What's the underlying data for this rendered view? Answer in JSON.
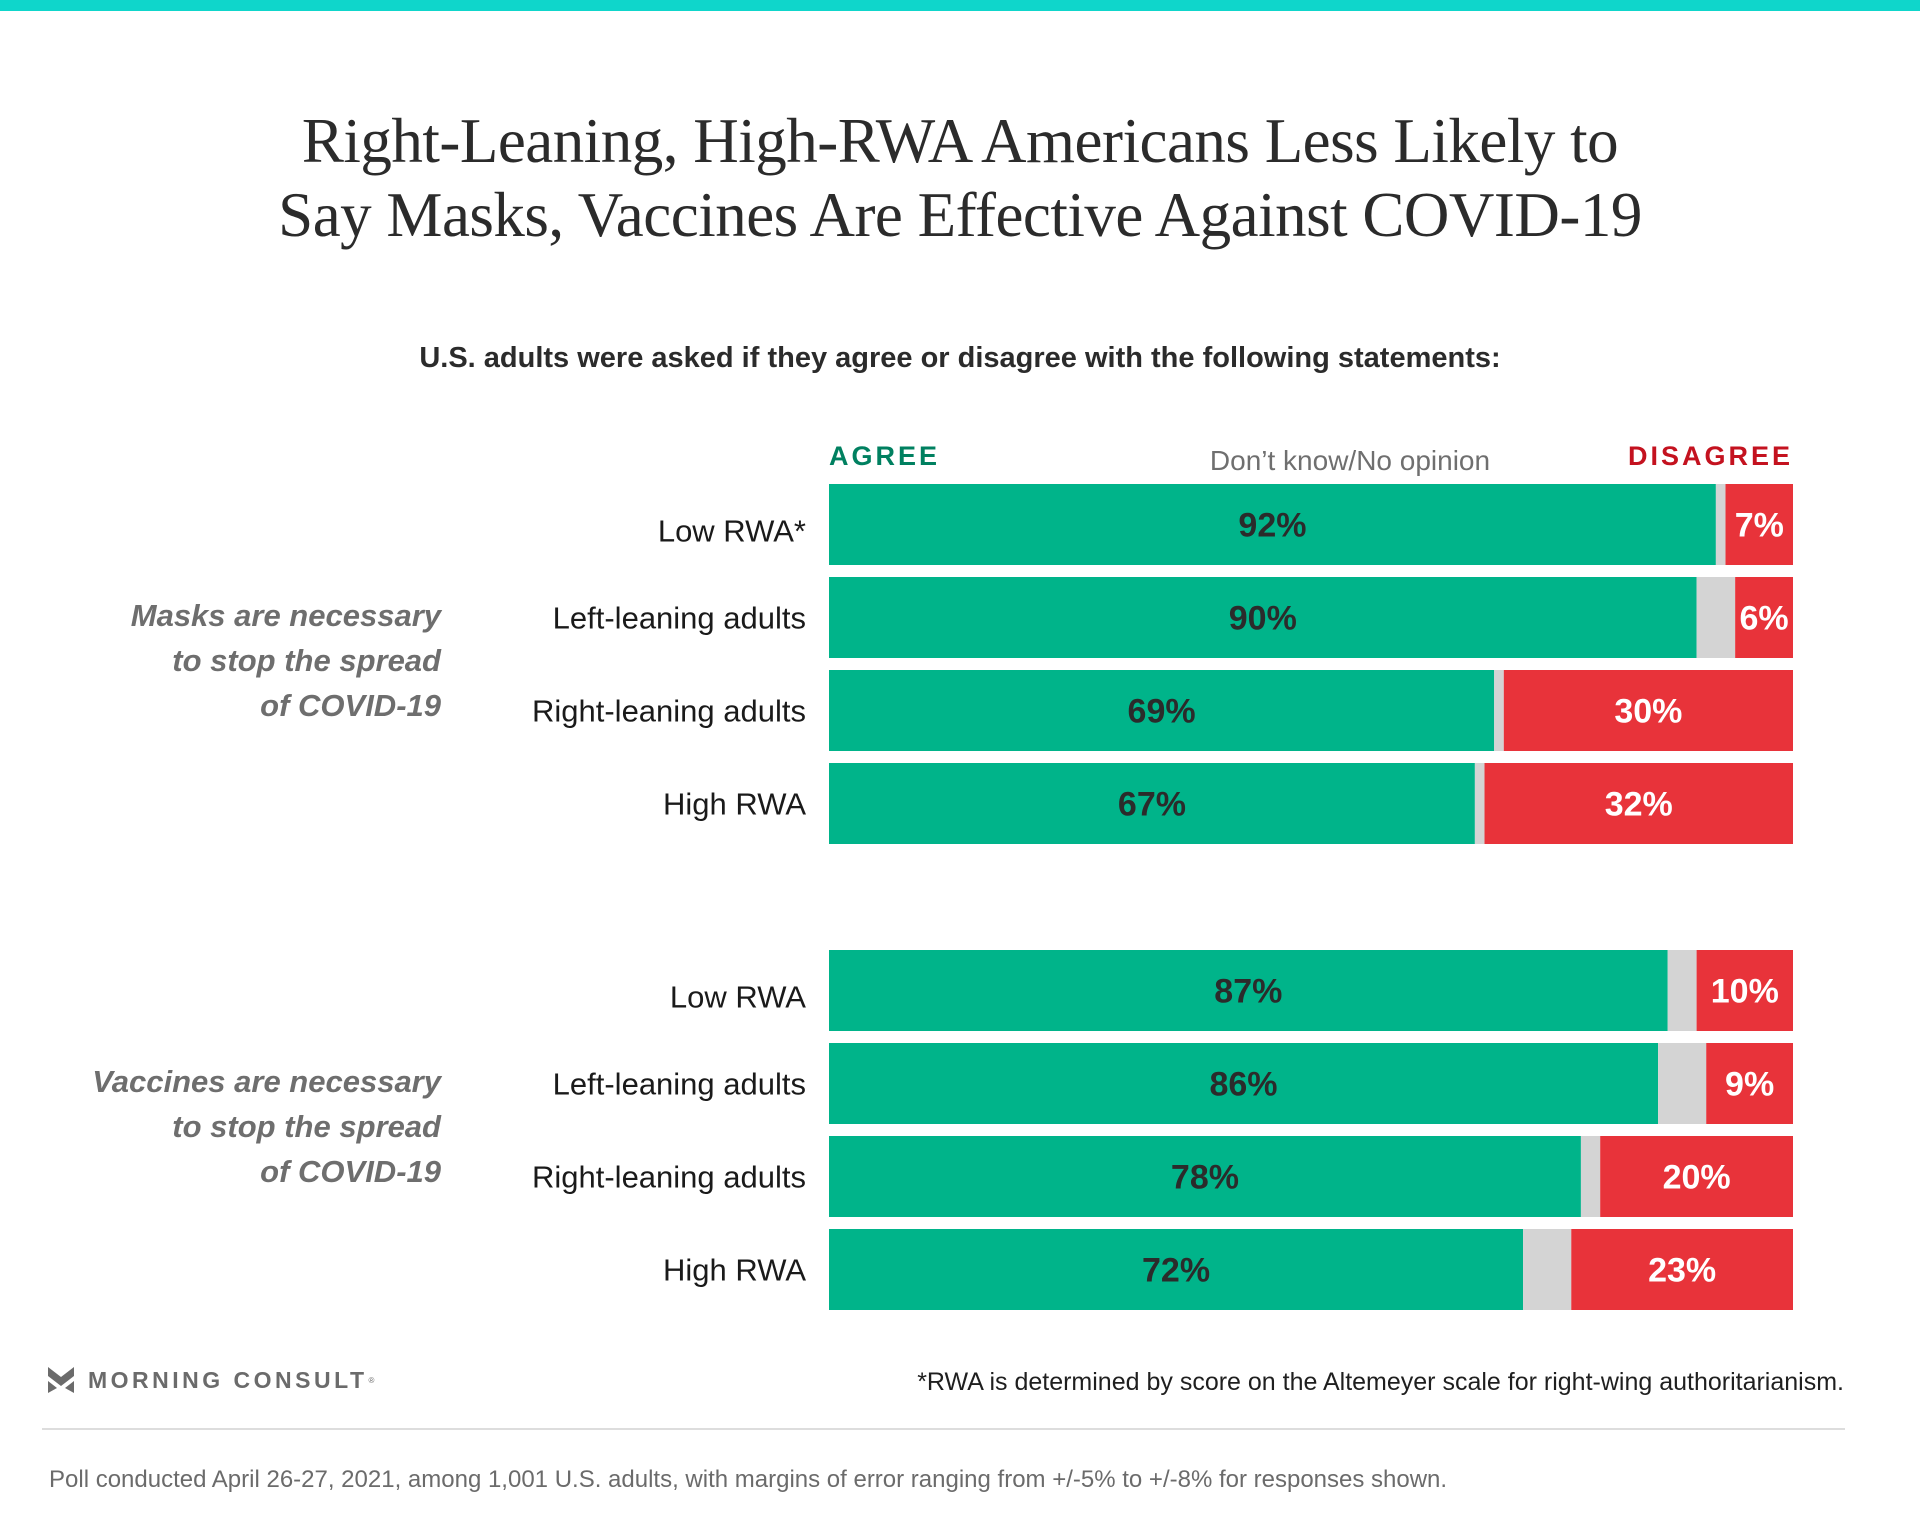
{
  "header": {
    "title_lines": [
      "Right-Leaning, High-RWA Americans Less Likely to",
      "Say Masks, Vaccines Are Effective Against COVID-19"
    ],
    "subtitle": "U.S. adults were asked if they agree or disagree with the following statements:"
  },
  "legend": {
    "agree": "AGREE",
    "dont_know": "Don’t know/No opinion",
    "disagree": "DISAGREE"
  },
  "colors": {
    "agree": "#00b48a",
    "dont_know": "#d4d4d4",
    "disagree": "#e8333a",
    "accent_bar": "#0fd6cb",
    "agree_label": "#008060",
    "disagree_label": "#c4121f"
  },
  "chart_data": {
    "type": "bar",
    "orientation": "horizontal-stacked-100",
    "title": "Right-Leaning, High-RWA Americans Less Likely to Say Masks, Vaccines Are Effective Against COVID-19",
    "subtitle": "U.S. adults were asked if they agree or disagree with the following statements:",
    "series_names": [
      "Agree",
      "Don’t know/No opinion",
      "Disagree"
    ],
    "xlim": [
      0,
      100
    ],
    "unit": "%",
    "groups": [
      {
        "statement_lines": [
          "Masks are necessary",
          "to stop the spread",
          "of COVID-19"
        ],
        "rows": [
          {
            "category": "Low RWA*",
            "agree": 92,
            "dont_know": 1,
            "disagree": 7,
            "agree_label": "92%",
            "disagree_label": "7%"
          },
          {
            "category": "Left-leaning adults",
            "agree": 90,
            "dont_know": 4,
            "disagree": 6,
            "agree_label": "90%",
            "disagree_label": "6%"
          },
          {
            "category": "Right-leaning adults",
            "agree": 69,
            "dont_know": 1,
            "disagree": 30,
            "agree_label": "69%",
            "disagree_label": "30%"
          },
          {
            "category": "High RWA",
            "agree": 67,
            "dont_know": 1,
            "disagree": 32,
            "agree_label": "67%",
            "disagree_label": "32%"
          }
        ]
      },
      {
        "statement_lines": [
          "Vaccines are necessary",
          "to stop the spread",
          "of COVID-19"
        ],
        "rows": [
          {
            "category": "Low RWA",
            "agree": 87,
            "dont_know": 3,
            "disagree": 10,
            "agree_label": "87%",
            "disagree_label": "10%"
          },
          {
            "category": "Left-leaning adults",
            "agree": 86,
            "dont_know": 5,
            "disagree": 9,
            "agree_label": "86%",
            "disagree_label": "9%"
          },
          {
            "category": "Right-leaning adults",
            "agree": 78,
            "dont_know": 2,
            "disagree": 20,
            "agree_label": "78%",
            "disagree_label": "20%"
          },
          {
            "category": "High RWA",
            "agree": 72,
            "dont_know": 5,
            "disagree": 23,
            "agree_label": "72%",
            "disagree_label": "23%"
          }
        ]
      }
    ]
  },
  "footer": {
    "brand": "MORNING CONSULT",
    "brand_mark": "®",
    "footnote": "*RWA is determined by score on the Altemeyer scale for right-wing authoritarianism.",
    "source": "Poll conducted April 26-27, 2021, among 1,001 U.S. adults, with margins of error ranging from +/-5% to +/-8% for responses shown."
  }
}
